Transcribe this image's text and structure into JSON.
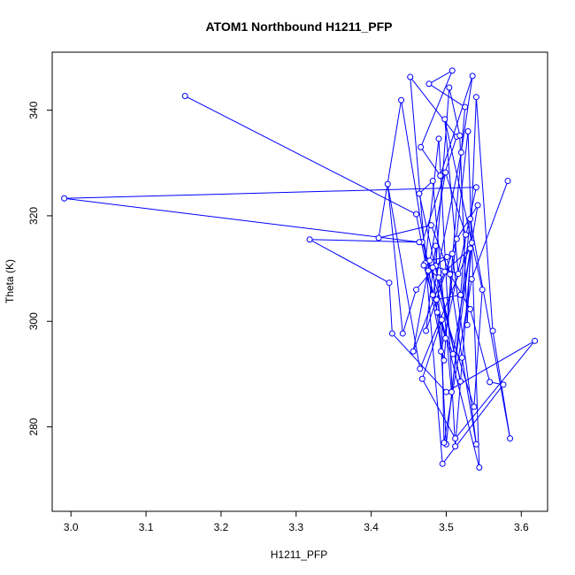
{
  "chart_data": {
    "type": "scatter",
    "title": "ATOM1 Northbound H1211_PFP",
    "xlabel": "H1211_PFP",
    "ylabel": "Theta (K)",
    "xlim": [
      2.975,
      3.635
    ],
    "ylim": [
      264,
      351
    ],
    "xticks": [
      "3.0",
      "3.1",
      "3.2",
      "3.3",
      "3.4",
      "3.5",
      "3.6"
    ],
    "yticks": [
      "280",
      "300",
      "320",
      "340"
    ],
    "grid": false,
    "legend": "none",
    "plot_style": "points connected by lines",
    "color": "#0000ff",
    "series": [
      {
        "x": [
          3.152,
          3.46,
          3.497,
          3.525,
          3.477,
          3.508,
          3.466,
          3.492,
          3.535,
          3.52,
          3.482,
          3.44,
          3.41,
          3.48,
          3.505,
          3.532,
          3.558,
          3.576,
          3.495,
          3.452,
          3.514,
          3.468,
          3.537,
          3.548,
          3.498,
          3.516,
          3.472,
          3.49,
          3.512,
          3.534,
          3.465,
          3.422,
          3.442,
          3.46,
          3.486,
          3.504,
          3.518,
          3.528,
          3.54,
          3.562,
          3.585,
          3.532,
          3.5,
          3.486,
          3.473,
          3.514,
          3.542,
          3.509,
          3.488,
          3.476,
          3.499,
          3.526,
          3.519,
          3.487,
          3.544,
          3.529,
          3.499,
          3.47,
          3.49,
          3.519,
          3.464,
          3.482,
          3.507,
          3.532,
          3.498,
          3.456,
          3.478,
          3.501,
          3.521,
          3.54,
          3.508,
          3.482,
          3.493,
          3.54,
          2.991,
          3.464,
          3.318,
          3.424,
          3.428,
          3.5,
          3.618,
          3.512,
          3.468,
          3.494,
          3.497,
          3.534,
          3.582
        ],
        "y": [
          342.7,
          320.3,
          292.6,
          340.6,
          345.0,
          347.5,
          333.0,
          327.6,
          346.5,
          332.0,
          305.0,
          341.9,
          315.8,
          318.2,
          308.9,
          302.3,
          288.5,
          288.0,
          273.0,
          346.3,
          335.0,
          315.0,
          283.8,
          306.0,
          338.3,
          309.0,
          311.0,
          334.6,
          276.3,
          314.9,
          291.0,
          326.0,
          297.7,
          306.0,
          310.5,
          344.3,
          335.2,
          299.3,
          342.5,
          298.2,
          277.8,
          319.4,
          276.7,
          314.3,
          298.2,
          315.6,
          322.0,
          293.8,
          301.7,
          309.6,
          328.2,
          316.4,
          305.0,
          304.1,
          272.3,
          336.0,
          296.8,
          310.6,
          308.3,
          288.6,
          324.2,
          326.6,
          286.6,
          313.8,
          309.4,
          294.3,
          311.5,
          312.2,
          293.1,
          276.7,
          312.8,
          310.2,
          294.3,
          325.4,
          323.3,
          315.0,
          315.5,
          307.3,
          297.7,
          286.6,
          296.3,
          277.8,
          289.1,
          300.3,
          277.0,
          308.0,
          326.6
        ]
      }
    ]
  }
}
